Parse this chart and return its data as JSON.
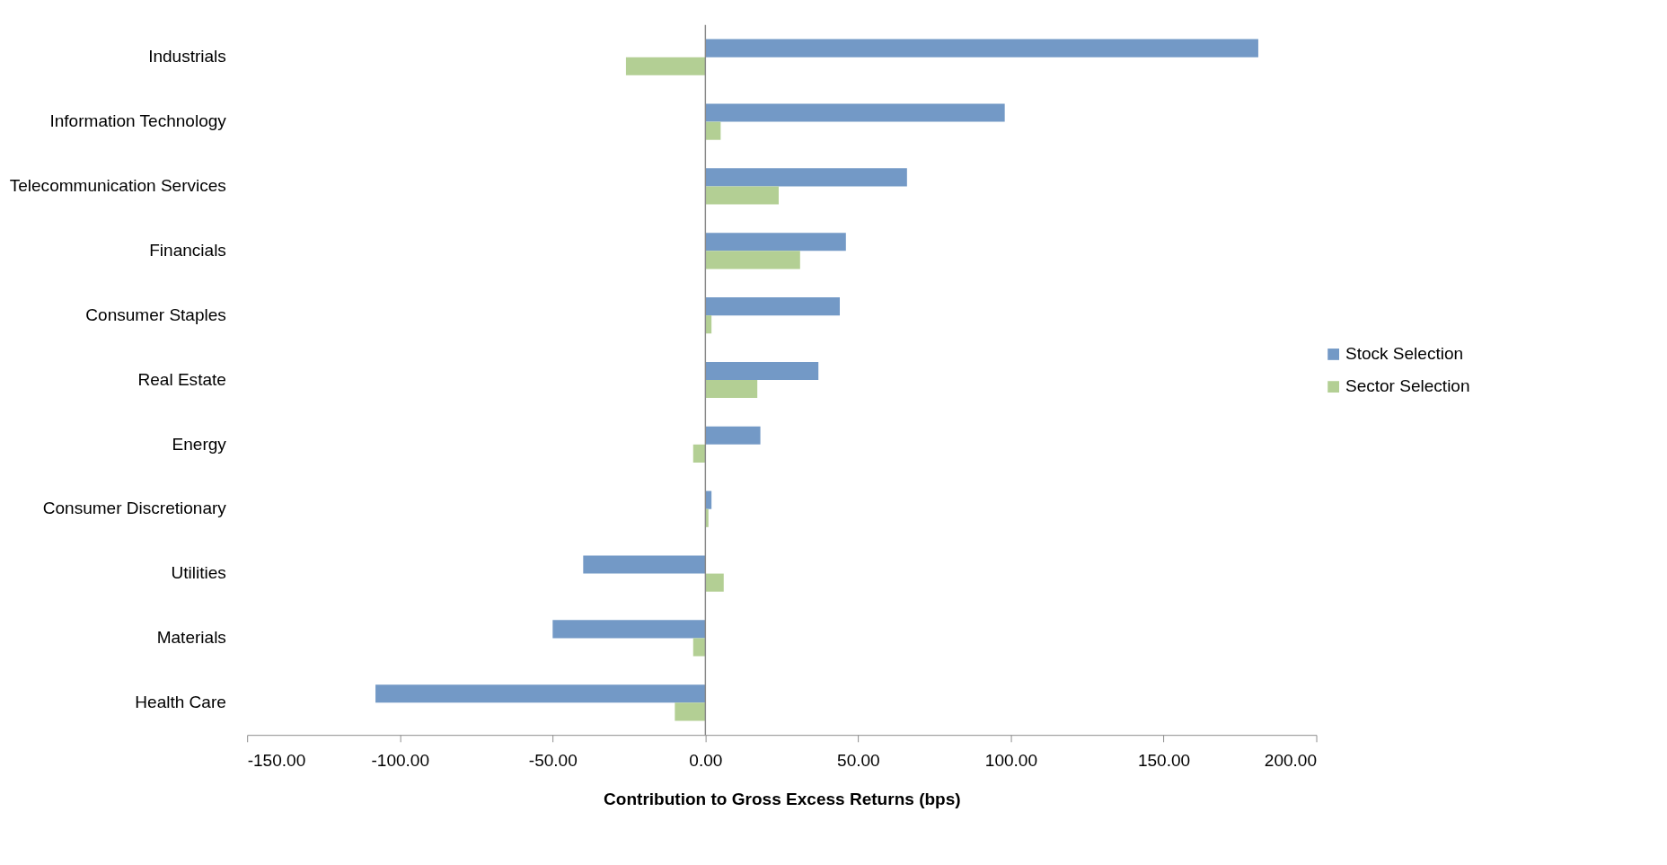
{
  "chart_data": {
    "type": "bar",
    "orientation": "horizontal",
    "xlabel": "Contribution to Gross Excess Returns (bps)",
    "categories": [
      "Industrials",
      "Information Technology",
      "Telecommunication Services",
      "Financials",
      "Consumer Staples",
      "Real Estate",
      "Energy",
      "Consumer Discretionary",
      "Utilities",
      "Materials",
      "Health Care"
    ],
    "series": [
      {
        "name": "Stock Selection",
        "color": "#7399c6",
        "values": [
          181,
          98,
          66,
          46,
          44,
          37,
          18,
          2,
          -40,
          -50,
          -108
        ]
      },
      {
        "name": "Sector Selection",
        "color": "#b3cf94",
        "values": [
          -26,
          5,
          24,
          31,
          2,
          17,
          -4,
          1,
          6,
          -4,
          -10
        ]
      }
    ],
    "xlim": [
      -150,
      200
    ],
    "xticks": [
      {
        "value": -150,
        "label": "-150.00"
      },
      {
        "value": -100,
        "label": "-100.00"
      },
      {
        "value": -50,
        "label": "-50.00"
      },
      {
        "value": 0,
        "label": "0.00"
      },
      {
        "value": 50,
        "label": "50.00"
      },
      {
        "value": 100,
        "label": "100.00"
      },
      {
        "value": 150,
        "label": "150.00"
      },
      {
        "value": 200,
        "label": "200.00"
      }
    ],
    "ref_lines": [
      {
        "axis": "x",
        "value": 0,
        "color": "#888888"
      }
    ],
    "grid": false,
    "legend": "right"
  }
}
